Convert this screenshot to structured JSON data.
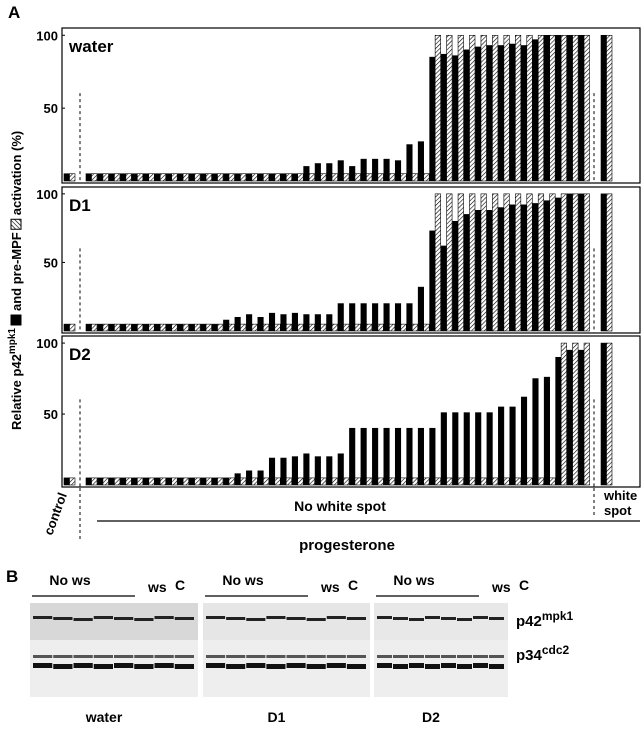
{
  "panel_label": "A",
  "y_label": [
    "Relative p42",
    "mpk1",
    "and pre-MPF",
    "activation (%)"
  ],
  "chart_data": [
    {
      "type": "bar",
      "title": "water",
      "ylim": [
        0,
        105
      ],
      "yticks": [
        50,
        100
      ],
      "series": [
        {
          "color": "#000000",
          "values": [
            5,
            5,
            5,
            5,
            5,
            5,
            5,
            5,
            5,
            5,
            5,
            5,
            5,
            5,
            5,
            5,
            5,
            5,
            5,
            5,
            10,
            12,
            12,
            14,
            10,
            15,
            15,
            15,
            14,
            25,
            27,
            85,
            87,
            86,
            90,
            92,
            93,
            93,
            94,
            93,
            97,
            100,
            100,
            100,
            100,
            100
          ]
        },
        {
          "color": "hatched",
          "values": [
            5,
            5,
            5,
            5,
            5,
            5,
            5,
            5,
            5,
            5,
            5,
            5,
            5,
            5,
            5,
            5,
            5,
            5,
            5,
            5,
            5,
            5,
            5,
            5,
            5,
            5,
            5,
            5,
            5,
            5,
            5,
            100,
            100,
            100,
            100,
            100,
            100,
            100,
            100,
            100,
            100,
            100,
            100,
            100,
            100,
            100
          ]
        }
      ]
    },
    {
      "type": "bar",
      "title": "D1",
      "ylim": [
        0,
        105
      ],
      "yticks": [
        50,
        100
      ],
      "series": [
        {
          "color": "#000000",
          "values": [
            5,
            5,
            5,
            5,
            5,
            5,
            5,
            5,
            5,
            5,
            5,
            5,
            5,
            8,
            10,
            12,
            10,
            13,
            12,
            13,
            12,
            12,
            12,
            20,
            20,
            20,
            20,
            20,
            20,
            20,
            32,
            73,
            62,
            80,
            85,
            88,
            88,
            90,
            92,
            92,
            93,
            95,
            97,
            100,
            100,
            100
          ]
        },
        {
          "color": "hatched",
          "values": [
            5,
            5,
            5,
            5,
            5,
            5,
            5,
            5,
            5,
            5,
            5,
            5,
            5,
            5,
            5,
            5,
            5,
            5,
            5,
            5,
            5,
            5,
            5,
            5,
            5,
            5,
            5,
            5,
            5,
            5,
            5,
            100,
            100,
            100,
            100,
            100,
            100,
            100,
            100,
            100,
            100,
            100,
            100,
            100,
            100,
            100
          ]
        }
      ]
    },
    {
      "type": "bar",
      "title": "D2",
      "ylim": [
        0,
        105
      ],
      "yticks": [
        50,
        100
      ],
      "series": [
        {
          "color": "#000000",
          "values": [
            5,
            5,
            5,
            5,
            5,
            5,
            5,
            5,
            5,
            5,
            5,
            5,
            5,
            5,
            8,
            10,
            10,
            19,
            19,
            20,
            22,
            20,
            20,
            22,
            40,
            40,
            40,
            40,
            40,
            40,
            40,
            40,
            51,
            51,
            51,
            51,
            51,
            55,
            55,
            62,
            75,
            76,
            90,
            95,
            95,
            100
          ]
        },
        {
          "color": "hatched",
          "values": [
            5,
            5,
            5,
            5,
            5,
            5,
            5,
            5,
            5,
            5,
            5,
            5,
            5,
            5,
            5,
            5,
            5,
            5,
            5,
            5,
            5,
            5,
            5,
            5,
            5,
            5,
            5,
            5,
            5,
            5,
            5,
            5,
            5,
            5,
            5,
            5,
            5,
            5,
            5,
            5,
            5,
            5,
            100,
            100,
            100,
            100
          ]
        }
      ]
    }
  ],
  "groups": {
    "control": "control",
    "no_ws": "No white spot",
    "ws": [
      "white",
      "spot"
    ],
    "treatment": "progesterone"
  },
  "blot": {
    "label": "B",
    "panels": [
      {
        "name": "water",
        "no_ws": "No ws",
        "ws": "ws",
        "c": "C"
      },
      {
        "name": "D1",
        "no_ws": "No ws",
        "ws": "ws",
        "c": "C"
      },
      {
        "name": "D2",
        "no_ws": "No ws",
        "ws": "ws",
        "c": "C"
      }
    ],
    "bands": [
      {
        "text": "p42",
        "sup": "mpk1"
      },
      {
        "text": "p34",
        "sup": "cdc2"
      }
    ]
  }
}
